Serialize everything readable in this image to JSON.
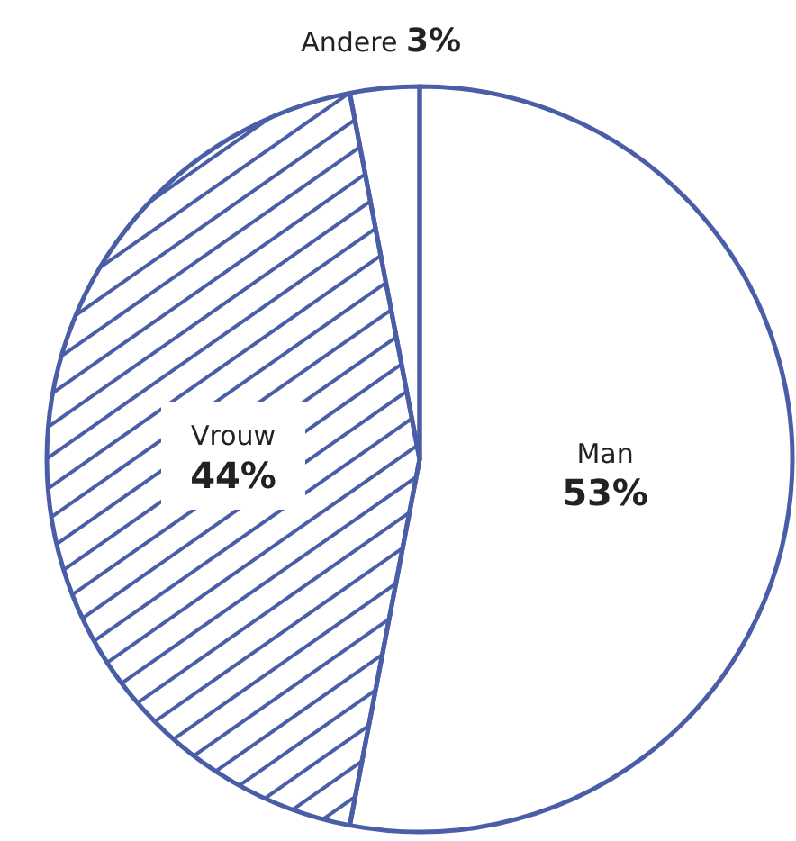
{
  "chart_data": {
    "type": "pie",
    "categories": [
      "Man",
      "Vrouw",
      "Andere"
    ],
    "values": [
      53,
      44,
      3
    ],
    "colors": [
      "#ffffff",
      "#4a5ea8",
      "#ffffff"
    ],
    "value_labels": [
      "53%",
      "44%",
      "3%"
    ]
  }
}
